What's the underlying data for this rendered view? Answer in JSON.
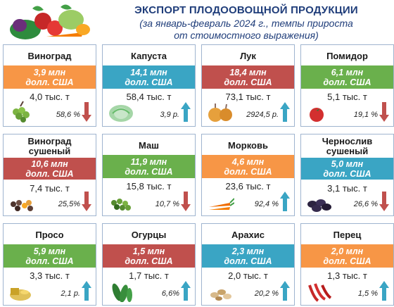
{
  "header": {
    "title": "ЭКСПОРТ ПЛОДООВОЩНОЙ ПРОДУКЦИИ",
    "subtitle_line1": "(за январь-февраль 2024 г., темпы прироста",
    "subtitle_line2": "от стоимостного выражения)",
    "icon": "vegetable-basket-icon"
  },
  "colors": {
    "green": "#6ab04c",
    "teal": "#3aa5c4",
    "red": "#c0504d",
    "orange": "#f79646",
    "arrow_up": "#3aa5c4",
    "arrow_down": "#c0504d"
  },
  "cards": [
    {
      "name1": "Виноград",
      "name2": "",
      "value1": "3,9 млн",
      "value2": "долл. США",
      "volume": "4,0 тыс. т",
      "pct": "58,6 %",
      "trend": "down",
      "color": "orange",
      "icon": "grapes-icon"
    },
    {
      "name1": "Капуста",
      "name2": "",
      "value1": "14,1 млн",
      "value2": "долл. США",
      "volume": "58,4 тыс. т",
      "pct": "3,9 р.",
      "trend": "up",
      "color": "teal",
      "icon": "cabbage-icon"
    },
    {
      "name1": "Лук",
      "name2": "",
      "value1": "18,4 млн",
      "value2": "долл. США",
      "volume": "73,1 тыс. т",
      "pct": "2924,5 р.",
      "trend": "up",
      "color": "red",
      "icon": "onion-icon"
    },
    {
      "name1": "Помидор",
      "name2": "",
      "value1": "6,1 млн",
      "value2": "долл. США",
      "volume": "5,1 тыс. т",
      "pct": "19,1 %",
      "trend": "down",
      "color": "green",
      "icon": "tomato-icon"
    },
    {
      "name1": "Виноград",
      "name2": "сушеный",
      "value1": "10,6 млн",
      "value2": "долл. США",
      "volume": "7,4 тыс. т",
      "pct": "25,5%",
      "trend": "down",
      "color": "red",
      "icon": "raisins-icon"
    },
    {
      "name1": "Маш",
      "name2": "",
      "value1": "11,9 млн",
      "value2": "долл. США",
      "volume": "15,8 тыс. т",
      "pct": "10,7 %",
      "trend": "down",
      "color": "green",
      "icon": "mung-bean-icon"
    },
    {
      "name1": "Морковь",
      "name2": "",
      "value1": "4,6 млн",
      "value2": "долл. США",
      "volume": "23,6 тыс. т",
      "pct": "92,4 %",
      "trend": "up",
      "color": "orange",
      "icon": "carrot-icon"
    },
    {
      "name1": "Чернослив",
      "name2": "сушеный",
      "value1": "5,0 млн",
      "value2": "долл. США",
      "volume": "3,1 тыс. т",
      "pct": "26,6 %",
      "trend": "down",
      "color": "teal",
      "icon": "prunes-icon"
    },
    {
      "name1": "Просо",
      "name2": "",
      "value1": "5,9 млн",
      "value2": "долл. США",
      "volume": "3,3 тыс. т",
      "pct": "2,1 р.",
      "trend": "up",
      "color": "green",
      "icon": "millet-icon"
    },
    {
      "name1": "Огурцы",
      "name2": "",
      "value1": "1,5 млн",
      "value2": "долл. США",
      "volume": "1,7 тыс. т",
      "pct": "6,6%",
      "trend": "up",
      "color": "red",
      "icon": "cucumber-icon"
    },
    {
      "name1": "Арахис",
      "name2": "",
      "value1": "2,3 млн",
      "value2": "долл. США",
      "volume": "2,0 тыс. т",
      "pct": "20,2 %",
      "trend": "up",
      "color": "teal",
      "icon": "peanut-icon"
    },
    {
      "name1": "Перец",
      "name2": "",
      "value1": "2,0 млн",
      "value2": "долл. США",
      "volume": "1,3 тыс. т",
      "pct": "1,5 %",
      "trend": "up",
      "color": "orange",
      "icon": "pepper-icon"
    }
  ]
}
